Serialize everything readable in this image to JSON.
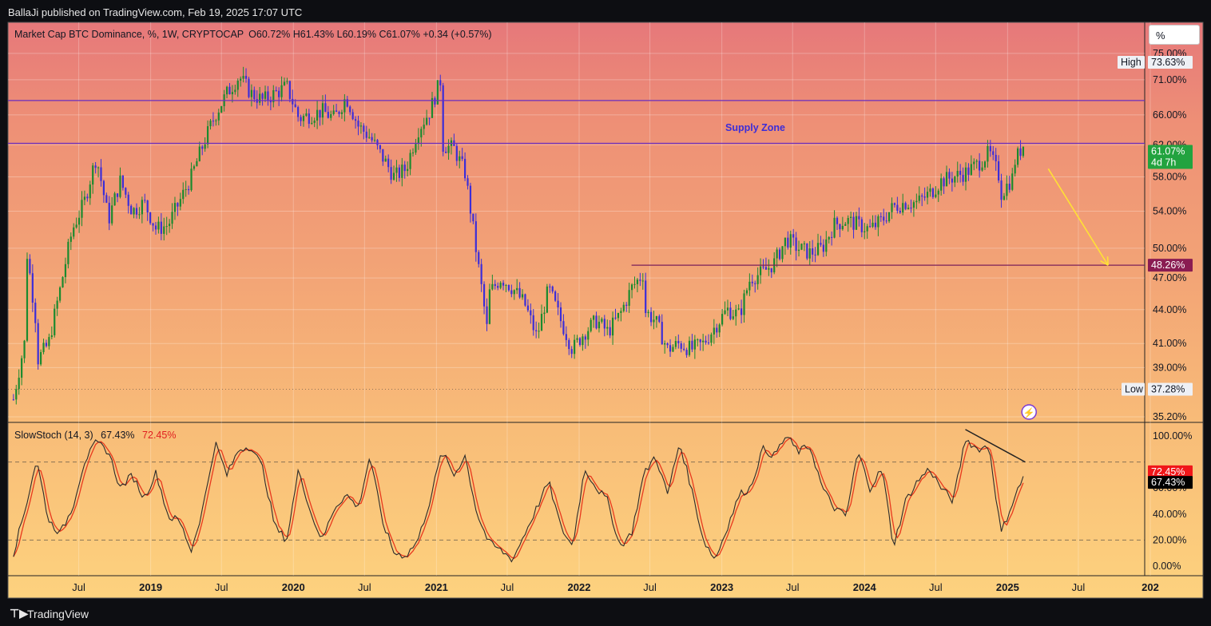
{
  "header": {
    "publisher": "BallaJi published on TradingView.com, Feb 19, 2025 17:07 UTC"
  },
  "footer": {
    "brand": "TradingView"
  },
  "scale_button": {
    "label": "%"
  },
  "legend_main": {
    "title": "Market Cap BTC Dominance, %, 1W, CRYPTOCAP",
    "ohlc": "O60.72%  H61.43%  L60.19%  C61.07%  +0.34 (+0.57%)"
  },
  "legend_osc": {
    "name": "SlowStoch (14, 3)",
    "k": "67.43%",
    "d": "72.45%"
  },
  "annotation": {
    "supply_zone": "Supply Zone"
  },
  "price_axis": {
    "ticks": [
      "75.00%",
      "71.00%",
      "66.00%",
      "62.00%",
      "58.00%",
      "54.00%",
      "50.00%",
      "47.00%",
      "44.00%",
      "41.00%",
      "39.00%",
      "35.20%"
    ]
  },
  "osc_axis": {
    "ticks": [
      "100.00%",
      "60.00%",
      "40.00%",
      "20.00%",
      "0.00%"
    ]
  },
  "time_axis": {
    "labels": [
      "Jul",
      "2019",
      "Jul",
      "2020",
      "Jul",
      "2021",
      "Jul",
      "2022",
      "Jul",
      "2023",
      "Jul",
      "2024",
      "Jul",
      "2025",
      "Jul",
      "202"
    ]
  },
  "tags": {
    "high_label": "High",
    "high_value": "73.63%",
    "last_value": "61.07%",
    "countdown": "4d 7h",
    "level_value": "48.26%",
    "low_label": "Low",
    "low_value": "37.28%",
    "d_value": "72.45%",
    "k_value": "67.43%"
  },
  "colors": {
    "up": "#1b8a2e",
    "down": "#3c2dd8",
    "level": "#7a1f5a",
    "zone_line": "#6a2dbf",
    "arrow": "#ffe135",
    "stoch_k": "#2b2b2b",
    "stoch_d": "#e8391e",
    "tag_green": "#22a33f",
    "tag_maroon": "#8a1c52",
    "tag_red": "#f0171a"
  },
  "chart_data": [
    {
      "type": "candlestick",
      "title": "Market Cap BTC Dominance, %, 1W, CRYPTOCAP",
      "scale": "log",
      "ylim": [
        35.2,
        75
      ],
      "last": {
        "open": 60.72,
        "high": 61.43,
        "low": 60.19,
        "close": 61.07,
        "change": 0.34,
        "change_pct": 0.57
      },
      "all_time_high": 73.63,
      "all_time_low": 37.28,
      "horizontal_levels": [
        68.0,
        62.2,
        48.26
      ],
      "x_start": "2018-01",
      "x_end": "2026-01",
      "price_path": [
        {
          "date": "2018-01",
          "value": 36.5
        },
        {
          "date": "2018-02",
          "value": 41.5
        },
        {
          "date": "2018-02",
          "value": 50.5
        },
        {
          "date": "2018-03",
          "value": 42.5
        },
        {
          "date": "2018-03",
          "value": 39.5
        },
        {
          "date": "2018-04",
          "value": 41.0
        },
        {
          "date": "2018-05",
          "value": 46.0
        },
        {
          "date": "2018-06",
          "value": 52.0
        },
        {
          "date": "2018-07",
          "value": 55.0
        },
        {
          "date": "2018-08",
          "value": 60.5
        },
        {
          "date": "2018-09",
          "value": 53.0
        },
        {
          "date": "2018-10",
          "value": 57.5
        },
        {
          "date": "2018-11",
          "value": 54.0
        },
        {
          "date": "2018-12",
          "value": 55.0
        },
        {
          "date": "2019-01",
          "value": 52.0
        },
        {
          "date": "2019-02",
          "value": 52.5
        },
        {
          "date": "2019-03",
          "value": 55.0
        },
        {
          "date": "2019-04",
          "value": 58.0
        },
        {
          "date": "2019-05",
          "value": 62.0
        },
        {
          "date": "2019-06",
          "value": 66.0
        },
        {
          "date": "2019-07",
          "value": 69.0
        },
        {
          "date": "2019-08",
          "value": 71.5
        },
        {
          "date": "2019-09",
          "value": 69.0
        },
        {
          "date": "2019-10",
          "value": 68.0
        },
        {
          "date": "2019-12",
          "value": 70.0
        },
        {
          "date": "2020-01",
          "value": 65.5
        },
        {
          "date": "2020-03",
          "value": 66.5
        },
        {
          "date": "2020-04",
          "value": 65.5
        },
        {
          "date": "2020-05",
          "value": 68.5
        },
        {
          "date": "2020-06",
          "value": 64.5
        },
        {
          "date": "2020-07",
          "value": 63.0
        },
        {
          "date": "2020-08",
          "value": 60.5
        },
        {
          "date": "2020-09",
          "value": 58.0
        },
        {
          "date": "2020-10",
          "value": 59.0
        },
        {
          "date": "2020-11",
          "value": 64.0
        },
        {
          "date": "2020-12",
          "value": 66.5
        },
        {
          "date": "2021-01",
          "value": 71.5
        },
        {
          "date": "2021-01",
          "value": 62.0
        },
        {
          "date": "2021-02",
          "value": 61.5
        },
        {
          "date": "2021-03",
          "value": 58.5
        },
        {
          "date": "2021-04",
          "value": 49.0
        },
        {
          "date": "2021-05",
          "value": 41.0
        },
        {
          "date": "2021-05",
          "value": 45.5
        },
        {
          "date": "2021-06",
          "value": 47.0
        },
        {
          "date": "2021-07",
          "value": 46.0
        },
        {
          "date": "2021-08",
          "value": 44.5
        },
        {
          "date": "2021-09",
          "value": 41.5
        },
        {
          "date": "2021-10",
          "value": 46.0
        },
        {
          "date": "2021-11",
          "value": 43.0
        },
        {
          "date": "2021-12",
          "value": 40.5
        },
        {
          "date": "2022-01",
          "value": 42.0
        },
        {
          "date": "2022-02",
          "value": 43.0
        },
        {
          "date": "2022-03",
          "value": 42.0
        },
        {
          "date": "2022-04",
          "value": 43.5
        },
        {
          "date": "2022-05",
          "value": 46.0
        },
        {
          "date": "2022-06",
          "value": 47.5
        },
        {
          "date": "2022-06",
          "value": 44.0
        },
        {
          "date": "2022-07",
          "value": 43.0
        },
        {
          "date": "2022-08",
          "value": 40.5
        },
        {
          "date": "2022-09",
          "value": 41.0
        },
        {
          "date": "2022-10",
          "value": 40.5
        },
        {
          "date": "2022-11",
          "value": 41.0
        },
        {
          "date": "2022-12",
          "value": 42.5
        },
        {
          "date": "2023-01",
          "value": 44.0
        },
        {
          "date": "2023-02",
          "value": 43.5
        },
        {
          "date": "2023-03",
          "value": 47.0
        },
        {
          "date": "2023-04",
          "value": 47.5
        },
        {
          "date": "2023-05",
          "value": 48.5
        },
        {
          "date": "2023-06",
          "value": 51.0
        },
        {
          "date": "2023-07",
          "value": 50.0
        },
        {
          "date": "2023-08",
          "value": 49.5
        },
        {
          "date": "2023-09",
          "value": 50.0
        },
        {
          "date": "2023-10",
          "value": 52.5
        },
        {
          "date": "2023-11",
          "value": 53.0
        },
        {
          "date": "2023-12",
          "value": 52.5
        },
        {
          "date": "2024-01",
          "value": 52.0
        },
        {
          "date": "2024-02",
          "value": 53.0
        },
        {
          "date": "2024-03",
          "value": 54.5
        },
        {
          "date": "2024-04",
          "value": 55.0
        },
        {
          "date": "2024-05",
          "value": 55.0
        },
        {
          "date": "2024-06",
          "value": 56.0
        },
        {
          "date": "2024-07",
          "value": 57.5
        },
        {
          "date": "2024-08",
          "value": 58.0
        },
        {
          "date": "2024-09",
          "value": 58.5
        },
        {
          "date": "2024-10",
          "value": 59.5
        },
        {
          "date": "2024-11",
          "value": 61.0
        },
        {
          "date": "2024-12",
          "value": 57.5
        },
        {
          "date": "2024-12",
          "value": 56.0
        },
        {
          "date": "2025-01",
          "value": 58.0
        },
        {
          "date": "2025-01",
          "value": 59.5
        },
        {
          "date": "2025-02",
          "value": 62.5
        },
        {
          "date": "2025-02",
          "value": 61.07
        }
      ],
      "projection": {
        "from": {
          "date": "2025-04",
          "value": 59.0
        },
        "to": {
          "date": "2025-09",
          "value": 48.26
        }
      }
    },
    {
      "type": "line",
      "title": "SlowStoch (14, 3)",
      "ylim": [
        0,
        100
      ],
      "bands": [
        80,
        20
      ],
      "series": [
        {
          "name": "%K",
          "last": 67.43
        },
        {
          "name": "%D",
          "last": 72.45
        }
      ],
      "k_path": [
        {
          "date": "2018-01",
          "value": 10
        },
        {
          "date": "2018-02",
          "value": 45
        },
        {
          "date": "2018-03",
          "value": 82
        },
        {
          "date": "2018-04",
          "value": 35
        },
        {
          "date": "2018-05",
          "value": 25
        },
        {
          "date": "2018-06",
          "value": 45
        },
        {
          "date": "2018-07",
          "value": 80
        },
        {
          "date": "2018-08",
          "value": 95
        },
        {
          "date": "2018-09",
          "value": 88
        },
        {
          "date": "2018-10",
          "value": 60
        },
        {
          "date": "2018-11",
          "value": 70
        },
        {
          "date": "2018-12",
          "value": 52
        },
        {
          "date": "2019-01",
          "value": 72
        },
        {
          "date": "2019-02",
          "value": 38
        },
        {
          "date": "2019-03",
          "value": 35
        },
        {
          "date": "2019-04",
          "value": 12
        },
        {
          "date": "2019-05",
          "value": 45
        },
        {
          "date": "2019-06",
          "value": 95
        },
        {
          "date": "2019-07",
          "value": 70
        },
        {
          "date": "2019-08",
          "value": 90
        },
        {
          "date": "2019-09",
          "value": 92
        },
        {
          "date": "2019-10",
          "value": 75
        },
        {
          "date": "2019-11",
          "value": 30
        },
        {
          "date": "2019-12",
          "value": 20
        },
        {
          "date": "2020-01",
          "value": 75
        },
        {
          "date": "2020-02",
          "value": 40
        },
        {
          "date": "2020-03",
          "value": 20
        },
        {
          "date": "2020-04",
          "value": 45
        },
        {
          "date": "2020-05",
          "value": 55
        },
        {
          "date": "2020-06",
          "value": 45
        },
        {
          "date": "2020-07",
          "value": 85
        },
        {
          "date": "2020-08",
          "value": 35
        },
        {
          "date": "2020-09",
          "value": 10
        },
        {
          "date": "2020-10",
          "value": 8
        },
        {
          "date": "2020-11",
          "value": 20
        },
        {
          "date": "2020-12",
          "value": 50
        },
        {
          "date": "2021-01",
          "value": 88
        },
        {
          "date": "2021-02",
          "value": 70
        },
        {
          "date": "2021-03",
          "value": 85
        },
        {
          "date": "2021-04",
          "value": 40
        },
        {
          "date": "2021-05",
          "value": 18
        },
        {
          "date": "2021-06",
          "value": 12
        },
        {
          "date": "2021-07",
          "value": 5
        },
        {
          "date": "2021-08",
          "value": 25
        },
        {
          "date": "2021-09",
          "value": 45
        },
        {
          "date": "2021-10",
          "value": 65
        },
        {
          "date": "2021-11",
          "value": 30
        },
        {
          "date": "2021-12",
          "value": 15
        },
        {
          "date": "2022-01",
          "value": 75
        },
        {
          "date": "2022-02",
          "value": 60
        },
        {
          "date": "2022-03",
          "value": 50
        },
        {
          "date": "2022-04",
          "value": 15
        },
        {
          "date": "2022-05",
          "value": 25
        },
        {
          "date": "2022-06",
          "value": 70
        },
        {
          "date": "2022-07",
          "value": 85
        },
        {
          "date": "2022-08",
          "value": 55
        },
        {
          "date": "2022-09",
          "value": 95
        },
        {
          "date": "2022-10",
          "value": 60
        },
        {
          "date": "2022-11",
          "value": 20
        },
        {
          "date": "2022-12",
          "value": 5
        },
        {
          "date": "2023-01",
          "value": 30
        },
        {
          "date": "2023-02",
          "value": 55
        },
        {
          "date": "2023-03",
          "value": 60
        },
        {
          "date": "2023-04",
          "value": 90
        },
        {
          "date": "2023-05",
          "value": 85
        },
        {
          "date": "2023-06",
          "value": 100
        },
        {
          "date": "2023-07",
          "value": 88
        },
        {
          "date": "2023-08",
          "value": 92
        },
        {
          "date": "2023-09",
          "value": 60
        },
        {
          "date": "2023-10",
          "value": 45
        },
        {
          "date": "2023-11",
          "value": 38
        },
        {
          "date": "2023-12",
          "value": 88
        },
        {
          "date": "2024-01",
          "value": 60
        },
        {
          "date": "2024-02",
          "value": 75
        },
        {
          "date": "2024-03",
          "value": 15
        },
        {
          "date": "2024-04",
          "value": 50
        },
        {
          "date": "2024-05",
          "value": 65
        },
        {
          "date": "2024-06",
          "value": 75
        },
        {
          "date": "2024-07",
          "value": 60
        },
        {
          "date": "2024-08",
          "value": 50
        },
        {
          "date": "2024-09",
          "value": 98
        },
        {
          "date": "2024-10",
          "value": 90
        },
        {
          "date": "2024-11",
          "value": 92
        },
        {
          "date": "2024-12",
          "value": 25
        },
        {
          "date": "2025-01",
          "value": 50
        },
        {
          "date": "2025-02",
          "value": 72
        },
        {
          "date": "2025-02",
          "value": 67.43
        }
      ],
      "divergence_line": {
        "from": {
          "date": "2024-09",
          "value": 105
        },
        "to": {
          "date": "2025-02",
          "value": 80
        }
      }
    }
  ]
}
